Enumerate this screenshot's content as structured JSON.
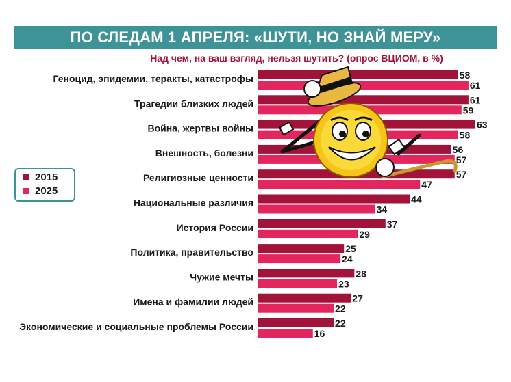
{
  "header": {
    "title": "ПО СЛЕДАМ 1 АПРЕЛЯ: «ШУТИ, НО ЗНАЙ МЕРУ»",
    "subtitle": "Над чем, на ваш взгляд, нельзя шутить? (опрос ВЦИОМ, в %)"
  },
  "legend": {
    "items": [
      {
        "label": "2015",
        "color": "#a2133a"
      },
      {
        "label": "2025",
        "color": "#e4265e"
      }
    ]
  },
  "illustration": {
    "icon": "smiley-with-hat-and-cane-icon"
  },
  "chart_data": {
    "type": "bar",
    "orientation": "horizontal",
    "title": "ПО СЛЕДАМ 1 АПРЕЛЯ: «ШУТИ, НО ЗНАЙ МЕРУ»",
    "subtitle": "Над чем, на ваш взгляд, нельзя шутить? (опрос ВЦИОМ, в %)",
    "categories": [
      "Геноцид, эпидемии, теракты, катастрофы",
      "Трагедии близких людей",
      "Война, жертвы войны",
      "Внешность, болезни",
      "Религиозные ценности",
      "Национальные различия",
      "История России",
      "Политика, правительство",
      "Чужие мечты",
      "Имена и фамилии людей",
      "Экономические и социальные проблемы России"
    ],
    "series": [
      {
        "name": "2015",
        "color": "#a2133a",
        "values": [
          58,
          61,
          63,
          56,
          57,
          44,
          37,
          25,
          28,
          27,
          22
        ]
      },
      {
        "name": "2025",
        "color": "#e4265e",
        "values": [
          61,
          59,
          58,
          57,
          47,
          34,
          29,
          24,
          23,
          22,
          16
        ]
      }
    ],
    "legend_position": "left",
    "grid": false,
    "xlim": [
      0,
      63
    ]
  }
}
